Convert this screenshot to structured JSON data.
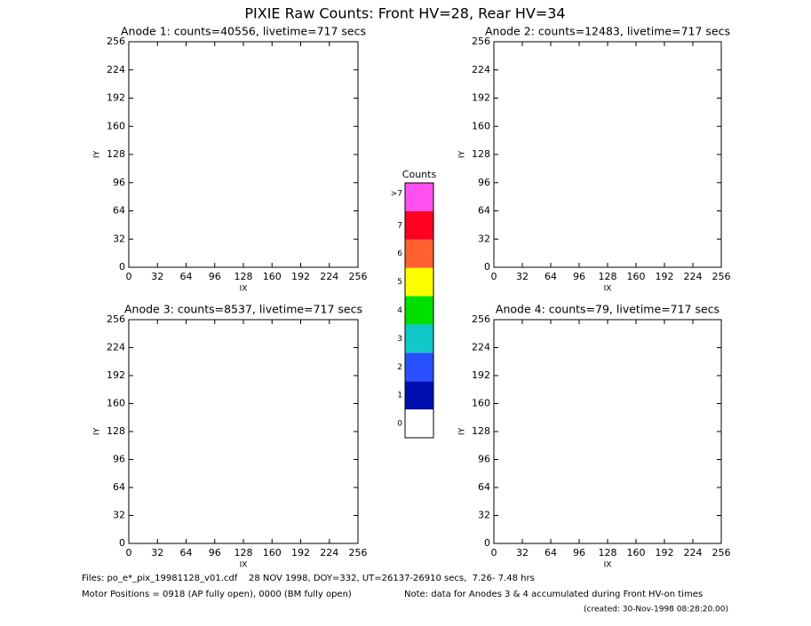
{
  "title": "PIXIE Raw Counts:  Front HV=28, Rear HV=34",
  "chart_data": [
    {
      "type": "heatmap",
      "title": "Anode 1: counts=40556, livetime=717 secs",
      "xlabel": "IX",
      "ylabel": "IY",
      "xlim": [
        0,
        256
      ],
      "ylim": [
        0,
        256
      ],
      "xticks": [
        0,
        32,
        64,
        96,
        128,
        160,
        192,
        224,
        256
      ],
      "yticks": [
        0,
        32,
        64,
        96,
        128,
        160,
        192,
        224,
        256
      ]
    },
    {
      "type": "heatmap",
      "title": "Anode 2: counts=12483, livetime=717 secs",
      "xlabel": "IX",
      "ylabel": "IY",
      "xlim": [
        0,
        256
      ],
      "ylim": [
        0,
        256
      ],
      "xticks": [
        0,
        32,
        64,
        96,
        128,
        160,
        192,
        224,
        256
      ],
      "yticks": [
        0,
        32,
        64,
        96,
        128,
        160,
        192,
        224,
        256
      ]
    },
    {
      "type": "heatmap",
      "title": "Anode 3: counts=8537, livetime=717 secs",
      "xlabel": "IX",
      "ylabel": "IY",
      "xlim": [
        0,
        256
      ],
      "ylim": [
        0,
        256
      ],
      "xticks": [
        0,
        32,
        64,
        96,
        128,
        160,
        192,
        224,
        256
      ],
      "yticks": [
        0,
        32,
        64,
        96,
        128,
        160,
        192,
        224,
        256
      ]
    },
    {
      "type": "heatmap",
      "title": "Anode 4: counts=79, livetime=717 secs",
      "xlabel": "IX",
      "ylabel": "IY",
      "xlim": [
        0,
        256
      ],
      "ylim": [
        0,
        256
      ],
      "xticks": [
        0,
        32,
        64,
        96,
        128,
        160,
        192,
        224,
        256
      ],
      "yticks": [
        0,
        32,
        64,
        96,
        128,
        160,
        192,
        224,
        256
      ]
    }
  ],
  "colorbar": {
    "title": "Counts",
    "ticks": [
      0,
      1,
      2,
      3,
      4,
      5,
      6,
      7,
      {
        "value": 8,
        "label": ">7"
      }
    ],
    "colors": [
      "#ffffff",
      "#0010b0",
      "#2850ff",
      "#10c8c8",
      "#00e000",
      "#ffff00",
      "#ff6030",
      "#ff0020",
      "#ff50f0"
    ]
  },
  "footer": {
    "files": "Files: po_e*_pix_19981128_v01.cdf    28 NOV 1998, DOY=332, UT=26137-26910 secs,  7.26- 7.48 hrs",
    "motor": "Motor Positions = 0918 (AP fully open), 0000 (BM fully open)",
    "note": "Note: data for Anodes 3 & 4 accumulated during Front HV-on times",
    "created": "(created: 30-Nov-1998 08:28:20.00)"
  }
}
